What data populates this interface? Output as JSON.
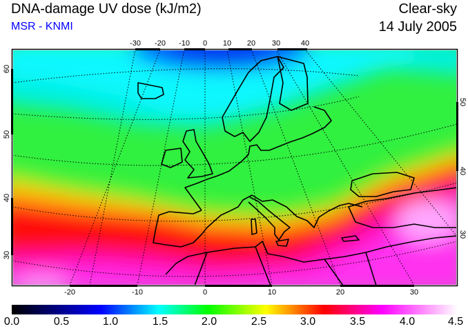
{
  "header": {
    "title": "DNA-damage UV dose (kJ/m2)",
    "credit": "MSR - KNMI",
    "condition": "Clear-sky",
    "date": "14 July 2005"
  },
  "map": {
    "top_lon_labels": [
      "-30",
      "-20",
      "-10",
      "0",
      "10",
      "20",
      "30",
      "40"
    ],
    "bottom_lon_labels": [
      "-20",
      "-10",
      "0",
      "10",
      "20",
      "30"
    ],
    "left_lat_labels": [
      "30",
      "40",
      "50",
      "60"
    ],
    "right_lat_labels": [
      "30",
      "40",
      "50"
    ]
  },
  "colorbar": {
    "labels": [
      "0.0",
      "0.5",
      "1.0",
      "1.5",
      "2.0",
      "2.5",
      "3.0",
      "3.5",
      "4.0",
      "4.5"
    ],
    "range": [
      0,
      4.5
    ],
    "colors": [
      "#000000",
      "#000080",
      "#0000ff",
      "#00ffff",
      "#00ff00",
      "#ffff00",
      "#ff0000",
      "#ff00ff",
      "#ffffff"
    ]
  }
}
